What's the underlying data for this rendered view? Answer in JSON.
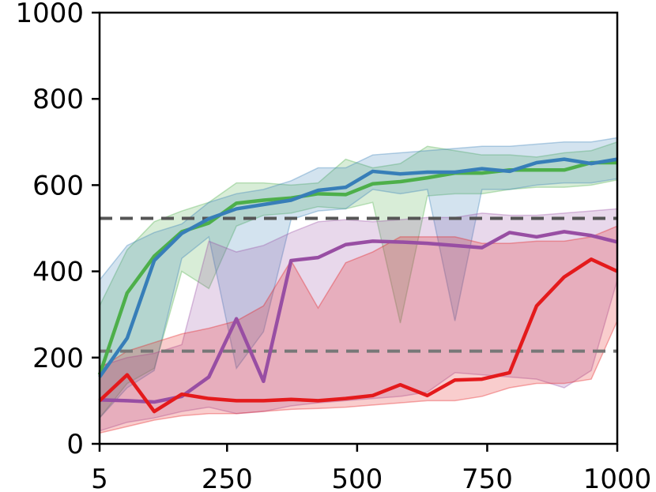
{
  "chart_data": {
    "type": "line",
    "title": "",
    "xlabel": "",
    "ylabel": "",
    "xlim": [
      5,
      1000
    ],
    "ylim": [
      0,
      1000
    ],
    "xticks": [
      5,
      250,
      500,
      750,
      1000
    ],
    "xtick_labels": [
      "5",
      "250",
      "500",
      "750",
      "1000"
    ],
    "yticks": [
      0,
      200,
      400,
      600,
      800,
      1000
    ],
    "ytick_labels": [
      "0",
      "200",
      "400",
      "600",
      "800",
      "1000"
    ],
    "grid": false,
    "x": [
      5,
      58,
      110,
      163,
      215,
      268,
      320,
      373,
      425,
      478,
      530,
      583,
      635,
      688,
      740,
      793,
      845,
      898,
      950,
      1000
    ],
    "series": [
      {
        "color": "#4daf4a",
        "values": [
          160,
          350,
          435,
          492,
          512,
          558,
          565,
          570,
          580,
          578,
          603,
          608,
          617,
          628,
          628,
          635,
          635,
          635,
          652,
          652
        ],
        "upper": [
          320,
          450,
          515,
          540,
          560,
          605,
          605,
          600,
          605,
          660,
          640,
          650,
          690,
          680,
          670,
          670,
          665,
          675,
          680,
          700
        ],
        "lower": [
          60,
          140,
          175,
          400,
          360,
          505,
          530,
          535,
          550,
          545,
          560,
          280,
          575,
          580,
          580,
          590,
          595,
          595,
          600,
          612
        ]
      },
      {
        "color": "#377eb8",
        "values": [
          155,
          245,
          425,
          488,
          522,
          545,
          555,
          565,
          588,
          595,
          632,
          626,
          630,
          630,
          638,
          632,
          652,
          660,
          650,
          660
        ],
        "upper": [
          380,
          460,
          490,
          510,
          560,
          580,
          590,
          610,
          640,
          640,
          670,
          675,
          680,
          685,
          690,
          690,
          695,
          700,
          700,
          710
        ],
        "lower": [
          60,
          130,
          170,
          430,
          480,
          175,
          260,
          520,
          540,
          545,
          590,
          580,
          590,
          285,
          590,
          590,
          600,
          605,
          605,
          615
        ]
      },
      {
        "color": "#984ea3",
        "values": [
          102,
          100,
          97,
          110,
          155,
          290,
          145,
          425,
          432,
          462,
          470,
          468,
          465,
          460,
          455,
          490,
          480,
          492,
          483,
          468
        ],
        "upper": [
          180,
          200,
          210,
          230,
          470,
          445,
          460,
          490,
          515,
          520,
          515,
          520,
          525,
          525,
          535,
          530,
          530,
          535,
          540,
          545
        ],
        "lower": [
          30,
          50,
          60,
          75,
          85,
          70,
          75,
          88,
          95,
          100,
          105,
          110,
          120,
          165,
          160,
          155,
          150,
          130,
          170,
          380
        ]
      },
      {
        "color": "#e41a1c",
        "values": [
          100,
          160,
          75,
          115,
          105,
          100,
          100,
          103,
          100,
          105,
          112,
          137,
          112,
          148,
          150,
          165,
          320,
          387,
          428,
          400
        ],
        "upper": [
          175,
          215,
          235,
          255,
          268,
          285,
          320,
          425,
          315,
          420,
          445,
          480,
          480,
          480,
          465,
          465,
          470,
          470,
          480,
          505
        ],
        "lower": [
          25,
          40,
          55,
          65,
          70,
          70,
          75,
          80,
          82,
          85,
          90,
          95,
          100,
          100,
          110,
          130,
          140,
          140,
          150,
          285
        ]
      }
    ],
    "reference_lines": [
      {
        "y": 523,
        "color": "#555555",
        "style": "dashed"
      },
      {
        "y": 215,
        "color": "#777777",
        "style": "dashed"
      }
    ]
  }
}
